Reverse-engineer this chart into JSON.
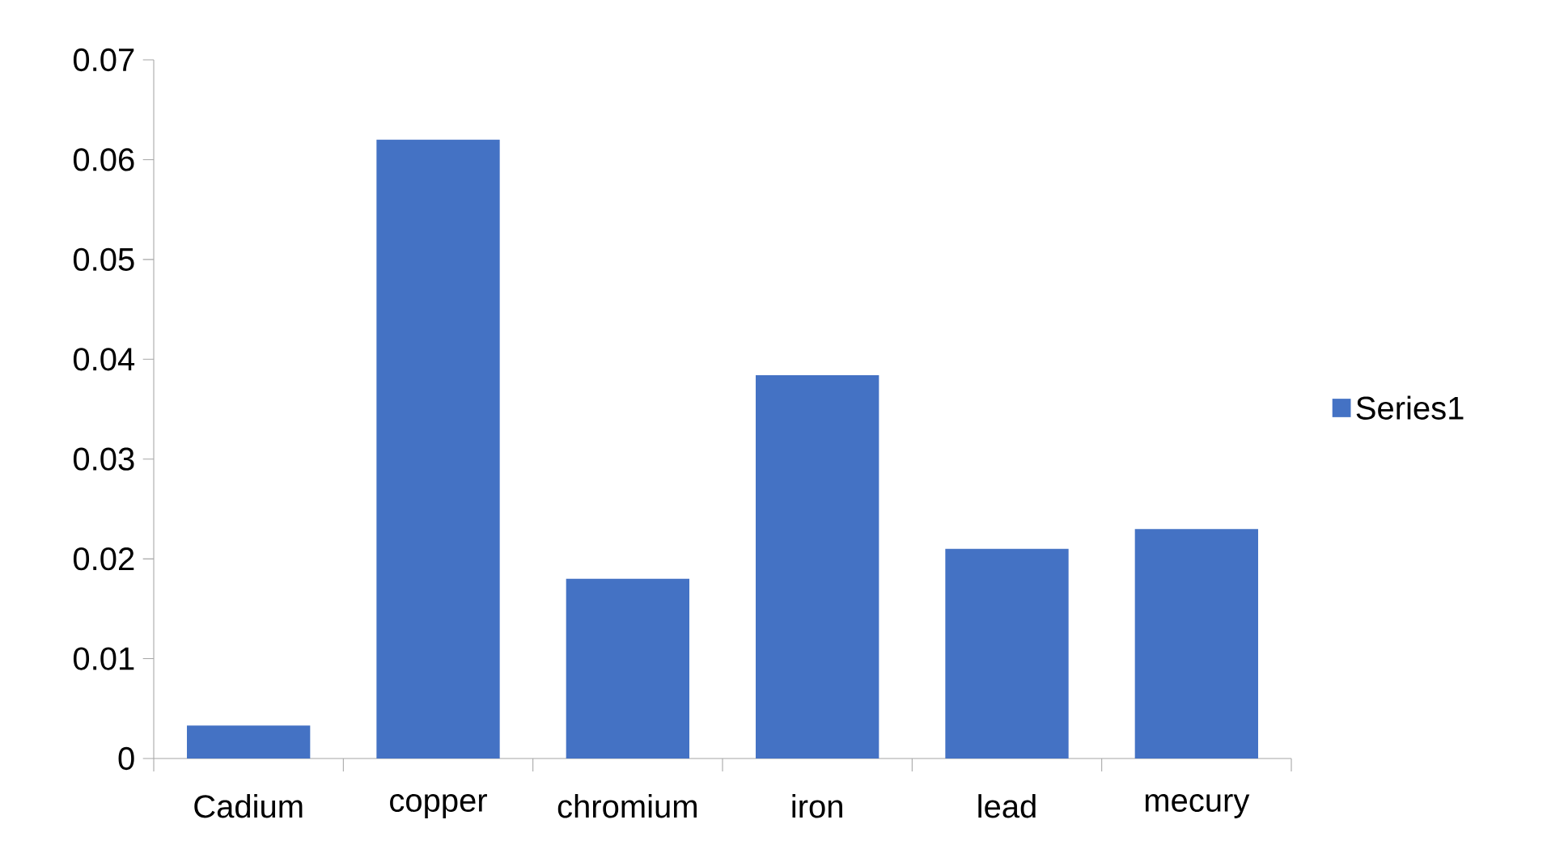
{
  "chart_data": {
    "type": "bar",
    "categories": [
      "Cadium",
      "copper",
      "chromium",
      "iron",
      "lead",
      "mecury"
    ],
    "series": [
      {
        "name": "Series1",
        "color": "#4472c4",
        "values": [
          0.0033,
          0.062,
          0.018,
          0.0384,
          0.021,
          0.023
        ]
      }
    ],
    "ylim": [
      0,
      0.07
    ],
    "yticks": [
      0,
      0.01,
      0.02,
      0.03,
      0.04,
      0.05,
      0.06,
      0.07
    ],
    "grid": false,
    "legend": "right"
  }
}
